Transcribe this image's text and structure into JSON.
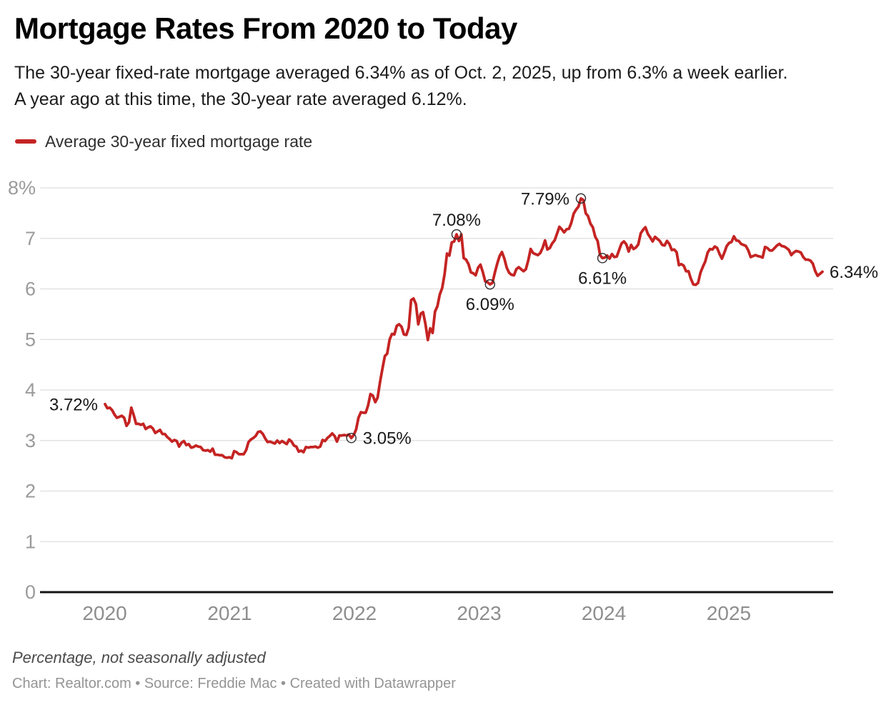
{
  "header": {
    "title": "Mortgage Rates From 2020 to Today",
    "description_lines": [
      "The 30-year fixed-rate mortgage averaged 6.34% as of Oct. 2, 2025, up from 6.3% a week earlier.",
      "A year ago at this time, the 30-year rate averaged 6.12%."
    ]
  },
  "legend": {
    "label": "Average 30-year fixed mortgage rate",
    "color": "#c42423"
  },
  "footer": {
    "note": "Percentage, not seasonally adjusted",
    "credit": "Chart: Realtor.com • Source: Freddie Mac • Created with Datawrapper"
  },
  "chart_data": {
    "type": "line",
    "title": "Mortgage Rates From 2020 to Today",
    "series_name": "Average 30-year fixed mortgage rate",
    "unit": "percent",
    "frequency": "weekly",
    "start_date": "2020-01-02",
    "end_date": "2025-10-02",
    "ylim": [
      0,
      8
    ],
    "grid": "horizontal",
    "legend_position": "top-left",
    "line_color": "#c42423",
    "y_ticks": [
      "0",
      "1",
      "2",
      "3",
      "4",
      "5",
      "6",
      "7",
      "8%"
    ],
    "x_ticks": [
      "2020",
      "2021",
      "2022",
      "2023",
      "2024",
      "2025"
    ],
    "values": [
      3.72,
      3.64,
      3.65,
      3.6,
      3.51,
      3.45,
      3.47,
      3.49,
      3.45,
      3.29,
      3.36,
      3.65,
      3.5,
      3.33,
      3.33,
      3.31,
      3.33,
      3.23,
      3.26,
      3.28,
      3.24,
      3.15,
      3.18,
      3.21,
      3.13,
      3.13,
      3.07,
      3.03,
      2.98,
      3.01,
      2.99,
      2.88,
      2.96,
      2.99,
      2.91,
      2.93,
      2.86,
      2.87,
      2.9,
      2.88,
      2.87,
      2.81,
      2.8,
      2.81,
      2.78,
      2.84,
      2.72,
      2.72,
      2.71,
      2.71,
      2.67,
      2.66,
      2.67,
      2.65,
      2.79,
      2.77,
      2.73,
      2.73,
      2.73,
      2.81,
      2.97,
      3.02,
      3.05,
      3.09,
      3.17,
      3.18,
      3.13,
      3.04,
      2.97,
      2.98,
      2.96,
      2.94,
      3.0,
      2.95,
      2.99,
      2.96,
      2.93,
      3.02,
      2.98,
      2.9,
      2.88,
      2.78,
      2.8,
      2.77,
      2.87,
      2.86,
      2.87,
      2.87,
      2.88,
      2.86,
      2.88,
      3.01,
      2.99,
      3.05,
      3.09,
      3.14,
      3.09,
      2.98,
      3.1,
      3.1,
      3.11,
      3.1,
      3.12,
      3.05,
      3.11,
      3.22,
      3.45,
      3.56,
      3.55,
      3.55,
      3.69,
      3.92,
      3.89,
      3.76,
      3.85,
      4.16,
      4.42,
      4.67,
      4.72,
      5.0,
      5.11,
      5.1,
      5.27,
      5.3,
      5.25,
      5.1,
      5.09,
      5.23,
      5.78,
      5.81,
      5.7,
      5.3,
      5.51,
      5.54,
      5.3,
      4.99,
      5.22,
      5.13,
      5.55,
      5.66,
      5.89,
      6.02,
      6.29,
      6.7,
      6.66,
      6.92,
      6.94,
      7.08,
      6.95,
      7.08,
      6.61,
      6.58,
      6.49,
      6.33,
      6.31,
      6.27,
      6.42,
      6.48,
      6.33,
      6.15,
      6.13,
      6.09,
      6.12,
      6.32,
      6.5,
      6.65,
      6.73,
      6.6,
      6.42,
      6.32,
      6.28,
      6.27,
      6.39,
      6.43,
      6.39,
      6.35,
      6.39,
      6.57,
      6.79,
      6.71,
      6.69,
      6.67,
      6.71,
      6.81,
      6.96,
      6.78,
      6.81,
      6.9,
      6.96,
      7.09,
      7.23,
      7.18,
      7.12,
      7.18,
      7.19,
      7.31,
      7.49,
      7.57,
      7.63,
      7.79,
      7.76,
      7.5,
      7.44,
      7.29,
      7.22,
      7.03,
      6.95,
      6.67,
      6.61,
      6.62,
      6.66,
      6.6,
      6.69,
      6.63,
      6.64,
      6.77,
      6.9,
      6.94,
      6.88,
      6.74,
      6.87,
      6.79,
      6.82,
      6.88,
      7.1,
      7.17,
      7.22,
      7.09,
      7.02,
      6.94,
      7.03,
      6.99,
      6.95,
      6.87,
      6.86,
      6.95,
      6.89,
      6.77,
      6.78,
      6.73,
      6.47,
      6.49,
      6.46,
      6.35,
      6.35,
      6.2,
      6.09,
      6.08,
      6.12,
      6.32,
      6.44,
      6.54,
      6.72,
      6.79,
      6.78,
      6.84,
      6.81,
      6.69,
      6.6,
      6.72,
      6.85,
      6.91,
      6.93,
      7.04,
      6.96,
      6.95,
      6.89,
      6.87,
      6.85,
      6.76,
      6.63,
      6.65,
      6.67,
      6.65,
      6.64,
      6.62,
      6.83,
      6.81,
      6.76,
      6.76,
      6.81,
      6.86,
      6.89,
      6.85,
      6.84,
      6.81,
      6.77,
      6.67,
      6.72,
      6.75,
      6.74,
      6.72,
      6.63,
      6.58,
      6.58,
      6.56,
      6.5,
      6.35,
      6.26,
      6.3,
      6.34
    ],
    "annotations": [
      {
        "label": "3.72%",
        "index": 0,
        "value": 3.72,
        "circle": false,
        "position": "left"
      },
      {
        "label": "3.05%",
        "index": 103,
        "value": 3.05,
        "circle": true,
        "position": "right"
      },
      {
        "label": "7.08%",
        "index": 147,
        "value": 7.08,
        "circle": true,
        "position": "above"
      },
      {
        "label": "6.09%",
        "index": 161,
        "value": 6.09,
        "circle": true,
        "position": "below"
      },
      {
        "label": "7.79%",
        "index": 199,
        "value": 7.79,
        "circle": true,
        "position": "left"
      },
      {
        "label": "6.61%",
        "index": 208,
        "value": 6.61,
        "circle": true,
        "position": "below"
      },
      {
        "label": "6.34%",
        "index": 300,
        "value": 6.34,
        "circle": false,
        "position": "right"
      }
    ]
  }
}
